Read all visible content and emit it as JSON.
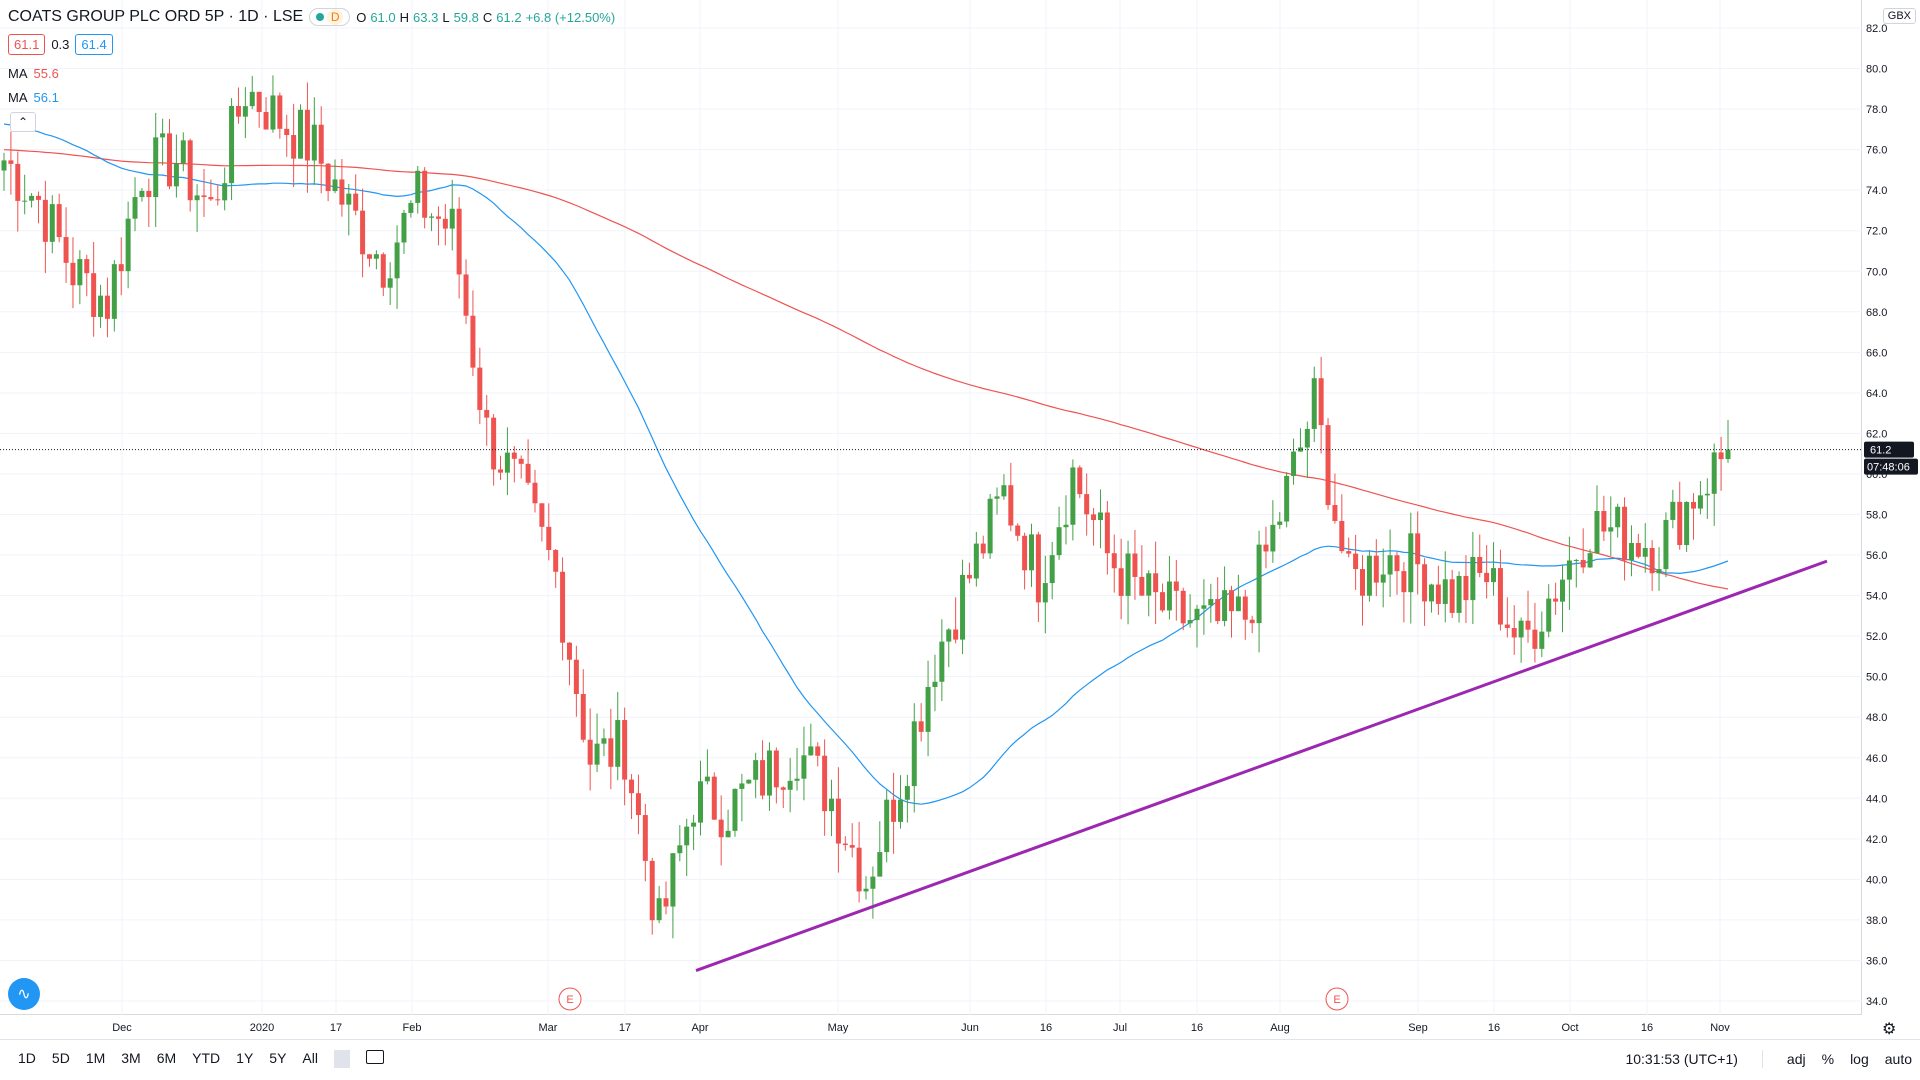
{
  "header": {
    "symbol_title": "COATS GROUP PLC ORD 5P · 1D · LSE",
    "interval_badge": "D",
    "ohlc": {
      "o_label": "O",
      "o": "61.0",
      "h_label": "H",
      "h": "63.3",
      "l_label": "L",
      "l": "59.8",
      "c_label": "C",
      "c": "61.2",
      "change": "+6.8 (+12.50%)"
    }
  },
  "quotes": {
    "bid": "61.1",
    "spread": "0.3",
    "ask": "61.4"
  },
  "indicators": [
    {
      "label": "MA",
      "value": "55.6",
      "color": "#ef5350"
    },
    {
      "label": "MA",
      "value": "56.1",
      "color": "#2196f3"
    }
  ],
  "price_axis": {
    "currency": "GBX",
    "last_price_label": "61.2",
    "countdown_label": "07:48:06"
  },
  "time_axis_markers": {
    "earnings_label": "E"
  },
  "bottom_bar": {
    "ranges": [
      "1D",
      "5D",
      "1M",
      "3M",
      "6M",
      "YTD",
      "1Y",
      "5Y",
      "All"
    ],
    "clock": "10:31:53 (UTC+1)",
    "adj": "adj",
    "percent": "%",
    "log": "log",
    "auto": "auto"
  },
  "colors": {
    "up": "#26a69a",
    "candle_up": "#43a047",
    "down": "#ef5350",
    "ma_slow": "#ef5350",
    "ma_fast": "#2196f3",
    "trendline": "#9c27b0",
    "grid": "#f0f3fa"
  },
  "chart_data": {
    "type": "candlestick",
    "title": "COATS GROUP PLC ORD 5P · 1D · LSE",
    "ylim": [
      34,
      82
    ],
    "y_ticks": [
      "34.0",
      "36.0",
      "38.0",
      "40.0",
      "42.0",
      "44.0",
      "46.0",
      "48.0",
      "50.0",
      "52.0",
      "54.0",
      "56.0",
      "58.0",
      "60.0",
      "62.0",
      "64.0",
      "66.0",
      "68.0",
      "70.0",
      "72.0",
      "74.0",
      "76.0",
      "78.0",
      "80.0",
      "82.0"
    ],
    "x_labels": [
      "Dec",
      "2020",
      "17",
      "Feb",
      "Mar",
      "17",
      "Apr",
      "May",
      "Jun",
      "16",
      "Jul",
      "16",
      "Aug",
      "Sep",
      "16",
      "Oct",
      "16",
      "Nov"
    ],
    "candles_close_approx": [
      {
        "date": "2019-11-18",
        "close": 75.5
      },
      {
        "date": "2019-11-25",
        "close": 73.5
      },
      {
        "date": "2019-12-02",
        "close": 70.0
      },
      {
        "date": "2019-12-09",
        "close": 68.5
      },
      {
        "date": "2019-12-16",
        "close": 75.0
      },
      {
        "date": "2019-12-23",
        "close": 75.5
      },
      {
        "date": "2019-12-30",
        "close": 73.0
      },
      {
        "date": "2020-01-06",
        "close": 79.0
      },
      {
        "date": "2020-01-13",
        "close": 77.5
      },
      {
        "date": "2020-01-20",
        "close": 76.0
      },
      {
        "date": "2020-01-27",
        "close": 73.0
      },
      {
        "date": "2020-02-03",
        "close": 70.5
      },
      {
        "date": "2020-02-10",
        "close": 73.5
      },
      {
        "date": "2020-02-17",
        "close": 72.0
      },
      {
        "date": "2020-02-24",
        "close": 62.0
      },
      {
        "date": "2020-03-02",
        "close": 59.0
      },
      {
        "date": "2020-03-09",
        "close": 55.0
      },
      {
        "date": "2020-03-16",
        "close": 46.0
      },
      {
        "date": "2020-03-23",
        "close": 46.5
      },
      {
        "date": "2020-03-30",
        "close": 37.5
      },
      {
        "date": "2020-04-06",
        "close": 44.0
      },
      {
        "date": "2020-04-13",
        "close": 43.5
      },
      {
        "date": "2020-04-20",
        "close": 45.0
      },
      {
        "date": "2020-04-27",
        "close": 46.5
      },
      {
        "date": "2020-05-04",
        "close": 44.0
      },
      {
        "date": "2020-05-11",
        "close": 40.0
      },
      {
        "date": "2020-05-18",
        "close": 45.0
      },
      {
        "date": "2020-05-25",
        "close": 51.0
      },
      {
        "date": "2020-06-01",
        "close": 55.0
      },
      {
        "date": "2020-06-08",
        "close": 59.0
      },
      {
        "date": "2020-06-15",
        "close": 55.0
      },
      {
        "date": "2020-06-22",
        "close": 60.0
      },
      {
        "date": "2020-06-29",
        "close": 56.0
      },
      {
        "date": "2020-07-06",
        "close": 54.0
      },
      {
        "date": "2020-07-13",
        "close": 53.0
      },
      {
        "date": "2020-07-20",
        "close": 52.5
      },
      {
        "date": "2020-07-27",
        "close": 53.0
      },
      {
        "date": "2020-08-03",
        "close": 58.0
      },
      {
        "date": "2020-08-10",
        "close": 63.5
      },
      {
        "date": "2020-08-17",
        "close": 54.5
      },
      {
        "date": "2020-08-24",
        "close": 56.0
      },
      {
        "date": "2020-08-31",
        "close": 55.5
      },
      {
        "date": "2020-09-07",
        "close": 54.0
      },
      {
        "date": "2020-09-14",
        "close": 55.0
      },
      {
        "date": "2020-09-21",
        "close": 51.5
      },
      {
        "date": "2020-09-28",
        "close": 54.5
      },
      {
        "date": "2020-10-05",
        "close": 57.5
      },
      {
        "date": "2020-10-12",
        "close": 57.0
      },
      {
        "date": "2020-10-19",
        "close": 56.5
      },
      {
        "date": "2020-10-26",
        "close": 59.0
      },
      {
        "date": "2020-11-02",
        "close": 61.2
      }
    ],
    "series": [
      {
        "name": "MA",
        "last": 55.6
      },
      {
        "name": "MA",
        "last": 56.1
      }
    ],
    "last_price": 61.2,
    "grid": true
  }
}
